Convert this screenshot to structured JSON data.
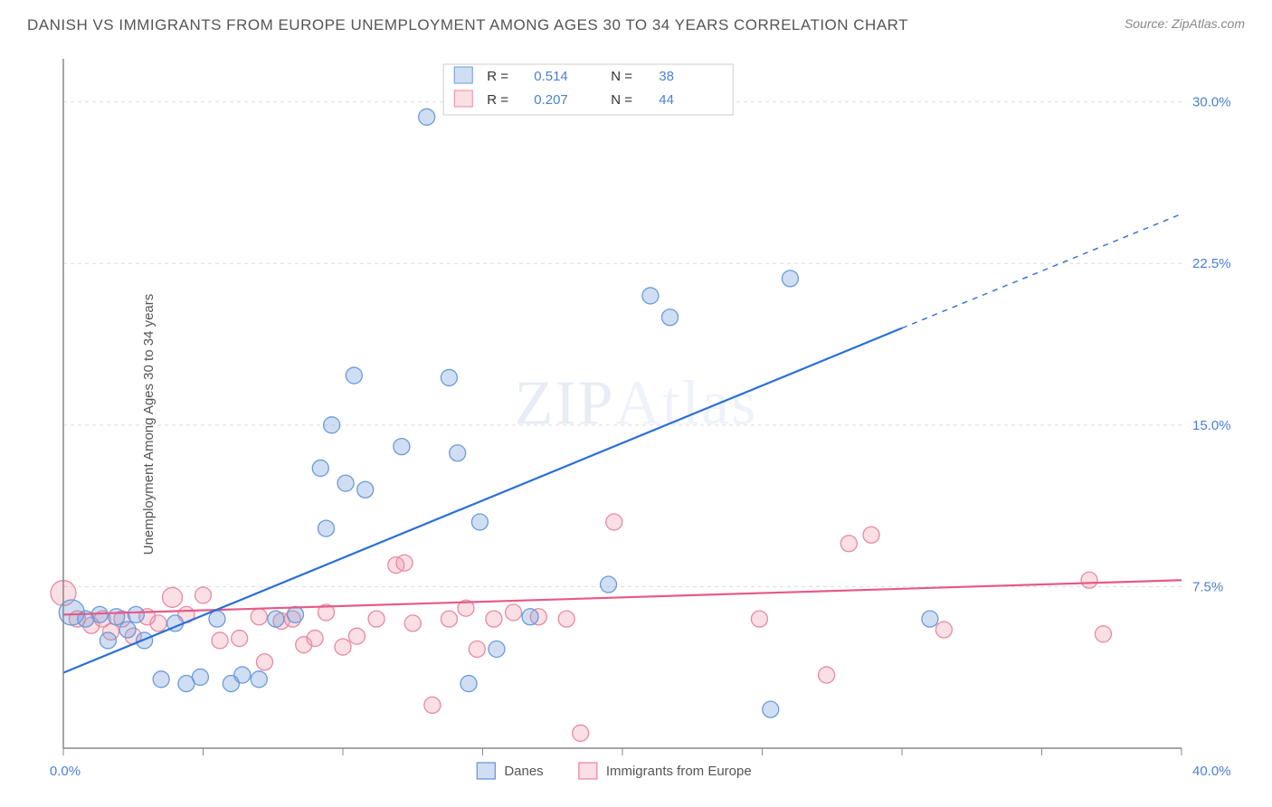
{
  "header": {
    "title": "DANISH VS IMMIGRANTS FROM EUROPE UNEMPLOYMENT AMONG AGES 30 TO 34 YEARS CORRELATION CHART",
    "source": "Source: ZipAtlas.com"
  },
  "chart": {
    "type": "scatter",
    "ylabel": "Unemployment Among Ages 30 to 34 years",
    "background_color": "#ffffff",
    "grid_color": "#dddddd",
    "axis_color": "#888888",
    "watermark": "ZIPAtlas",
    "xlim": [
      0,
      40
    ],
    "ylim": [
      0,
      32
    ],
    "yticks": [
      {
        "v": 7.5,
        "label": "7.5%"
      },
      {
        "v": 15.0,
        "label": "15.0%"
      },
      {
        "v": 22.5,
        "label": "22.5%"
      },
      {
        "v": 30.0,
        "label": "30.0%"
      }
    ],
    "xticks": [
      {
        "v": 0,
        "label": "0.0%"
      },
      {
        "v": 5,
        "label": ""
      },
      {
        "v": 10,
        "label": ""
      },
      {
        "v": 15,
        "label": ""
      },
      {
        "v": 20,
        "label": ""
      },
      {
        "v": 25,
        "label": ""
      },
      {
        "v": 30,
        "label": ""
      },
      {
        "v": 35,
        "label": ""
      },
      {
        "v": 40,
        "label": "40.0%"
      }
    ],
    "series": {
      "danes": {
        "label": "Danes",
        "R": "0.514",
        "N": "38",
        "point_fill": "rgba(120,160,220,0.35)",
        "point_stroke": "#6a9bd8",
        "line_color": "#2a6fd6",
        "line_width": 2.2,
        "marker_radius": 9,
        "trend": {
          "x1": 0,
          "y1": 3.5,
          "x2": 30,
          "y2": 19.5,
          "dash_x2": 40,
          "dash_y2": 24.8
        },
        "points": [
          {
            "x": 0.3,
            "y": 6.3,
            "r": 14
          },
          {
            "x": 0.8,
            "y": 6.0
          },
          {
            "x": 1.3,
            "y": 6.2
          },
          {
            "x": 1.6,
            "y": 5.0
          },
          {
            "x": 1.9,
            "y": 6.1
          },
          {
            "x": 2.3,
            "y": 5.5
          },
          {
            "x": 2.6,
            "y": 6.2
          },
          {
            "x": 2.9,
            "y": 5.0
          },
          {
            "x": 3.5,
            "y": 3.2
          },
          {
            "x": 4.0,
            "y": 5.8
          },
          {
            "x": 4.4,
            "y": 3.0
          },
          {
            "x": 4.9,
            "y": 3.3
          },
          {
            "x": 5.5,
            "y": 6.0
          },
          {
            "x": 6.0,
            "y": 3.0
          },
          {
            "x": 6.4,
            "y": 3.4
          },
          {
            "x": 7.0,
            "y": 3.2
          },
          {
            "x": 7.6,
            "y": 6.0
          },
          {
            "x": 8.3,
            "y": 6.2
          },
          {
            "x": 9.2,
            "y": 13.0
          },
          {
            "x": 9.4,
            "y": 10.2
          },
          {
            "x": 9.6,
            "y": 15.0
          },
          {
            "x": 10.1,
            "y": 12.3
          },
          {
            "x": 10.4,
            "y": 17.3
          },
          {
            "x": 10.8,
            "y": 12.0
          },
          {
            "x": 12.1,
            "y": 14.0
          },
          {
            "x": 13.0,
            "y": 29.3
          },
          {
            "x": 13.8,
            "y": 17.2
          },
          {
            "x": 14.1,
            "y": 13.7
          },
          {
            "x": 14.5,
            "y": 3.0
          },
          {
            "x": 14.9,
            "y": 10.5
          },
          {
            "x": 15.5,
            "y": 4.6
          },
          {
            "x": 16.7,
            "y": 6.1
          },
          {
            "x": 19.5,
            "y": 7.6
          },
          {
            "x": 21.0,
            "y": 21.0
          },
          {
            "x": 21.7,
            "y": 20.0
          },
          {
            "x": 25.3,
            "y": 1.8
          },
          {
            "x": 26.0,
            "y": 21.8
          },
          {
            "x": 31.0,
            "y": 6.0
          }
        ]
      },
      "immigrants": {
        "label": "Immigrants from Europe",
        "R": "0.207",
        "N": "44",
        "point_fill": "rgba(240,150,170,0.30)",
        "point_stroke": "#e88aa2",
        "line_color": "#e65a87",
        "line_width": 2.2,
        "marker_radius": 9,
        "trend": {
          "x1": 0,
          "y1": 6.2,
          "x2": 40,
          "y2": 7.8
        },
        "points": [
          {
            "x": 0.0,
            "y": 7.2,
            "r": 14
          },
          {
            "x": 0.5,
            "y": 6.0
          },
          {
            "x": 1.0,
            "y": 5.7
          },
          {
            "x": 1.4,
            "y": 6.0
          },
          {
            "x": 1.7,
            "y": 5.4
          },
          {
            "x": 2.1,
            "y": 6.0
          },
          {
            "x": 2.5,
            "y": 5.2
          },
          {
            "x": 3.0,
            "y": 6.1
          },
          {
            "x": 3.4,
            "y": 5.8
          },
          {
            "x": 3.9,
            "y": 7.0,
            "r": 11
          },
          {
            "x": 4.4,
            "y": 6.2
          },
          {
            "x": 5.0,
            "y": 7.1
          },
          {
            "x": 5.6,
            "y": 5.0
          },
          {
            "x": 6.3,
            "y": 5.1
          },
          {
            "x": 7.0,
            "y": 6.1
          },
          {
            "x": 7.2,
            "y": 4.0
          },
          {
            "x": 7.8,
            "y": 5.9
          },
          {
            "x": 8.2,
            "y": 6.0
          },
          {
            "x": 8.6,
            "y": 4.8
          },
          {
            "x": 9.0,
            "y": 5.1
          },
          {
            "x": 9.4,
            "y": 6.3
          },
          {
            "x": 10.0,
            "y": 4.7
          },
          {
            "x": 10.5,
            "y": 5.2
          },
          {
            "x": 11.2,
            "y": 6.0
          },
          {
            "x": 11.9,
            "y": 8.5
          },
          {
            "x": 12.2,
            "y": 8.6
          },
          {
            "x": 12.5,
            "y": 5.8
          },
          {
            "x": 13.2,
            "y": 2.0
          },
          {
            "x": 13.8,
            "y": 6.0
          },
          {
            "x": 14.4,
            "y": 6.5
          },
          {
            "x": 14.8,
            "y": 4.6
          },
          {
            "x": 15.4,
            "y": 6.0
          },
          {
            "x": 16.1,
            "y": 6.3
          },
          {
            "x": 17.0,
            "y": 6.1
          },
          {
            "x": 18.0,
            "y": 6.0
          },
          {
            "x": 18.5,
            "y": 0.7
          },
          {
            "x": 19.7,
            "y": 10.5
          },
          {
            "x": 24.9,
            "y": 6.0
          },
          {
            "x": 27.3,
            "y": 3.4
          },
          {
            "x": 28.1,
            "y": 9.5
          },
          {
            "x": 28.9,
            "y": 9.9
          },
          {
            "x": 31.5,
            "y": 5.5
          },
          {
            "x": 36.7,
            "y": 7.8
          },
          {
            "x": 37.2,
            "y": 5.3
          }
        ]
      }
    }
  }
}
